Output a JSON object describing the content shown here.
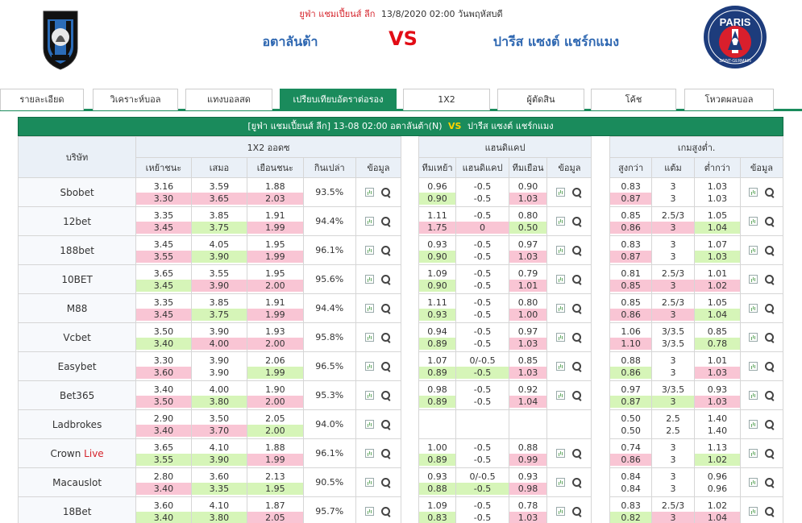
{
  "match": {
    "league": "ยูฟ่า แชมเปี้ยนส์ ลีก",
    "datetime": "13/8/2020 02:00 วันพฤหัสบดี",
    "home": "อตาลันต้า",
    "vs": "VS",
    "away": "ปารีส แซงต์ แชร์กแมง",
    "bar_league": "[ยูฟ่า แชมเปี้ยนส์ ลีก]",
    "bar_time": "13-08 02:00",
    "bar_home": "อตาลันต้า(N)",
    "bar_vs": "VS",
    "bar_away": "ปารีส แซงต์ แชร์กแมง"
  },
  "tabs": [
    "รายละเอียด",
    "วิเคราะห์บอล",
    "แทงบอลสด",
    "เปรียบเทียบอัตราต่อรอง",
    "1X2",
    "ผู้ตัดสิน",
    "โค้ช",
    "โหวตผลบอล"
  ],
  "active_tab": 3,
  "table": {
    "company_header": "บริษัท",
    "group1_title": "1X2 ออดซ",
    "group2_title": "แฮนดิแคป",
    "group3_title": "เกมสูงต่ำ.",
    "g1_cols": [
      "เหย้าชนะ",
      "เสมอ",
      "เยือนชนะ",
      "กินเปล่า",
      "ข้อมูล"
    ],
    "g2_cols": [
      "ทีมเหย้า",
      "แฮนดิแคป",
      "ทีมเยือน",
      "ข้อมูล"
    ],
    "g3_cols": [
      "สูงกว่า",
      "แต้ม",
      "ต่ำกว่า",
      "ข้อมูล"
    ]
  },
  "rows": [
    {
      "company": "Sbobet",
      "live": "",
      "x12": [
        [
          "3.16",
          "3.30",
          "r"
        ],
        [
          "3.59",
          "3.65",
          "r"
        ],
        [
          "1.88",
          "2.03",
          "r"
        ]
      ],
      "payout": "93.5%",
      "hdp": [
        [
          "0.96",
          "0.90",
          "g"
        ],
        [
          "-0.5",
          "-0.5",
          ""
        ],
        [
          "0.90",
          "1.03",
          "r"
        ]
      ],
      "ou": [
        [
          "0.83",
          "0.87",
          "r"
        ],
        [
          "3",
          "3",
          ""
        ],
        [
          "1.03",
          "1.03",
          ""
        ]
      ]
    },
    {
      "company": "12bet",
      "live": "",
      "x12": [
        [
          "3.35",
          "3.45",
          "r"
        ],
        [
          "3.85",
          "3.75",
          "g"
        ],
        [
          "1.91",
          "1.99",
          "r"
        ]
      ],
      "payout": "94.4%",
      "hdp": [
        [
          "1.11",
          "1.75",
          "r"
        ],
        [
          "-0.5",
          "0",
          "r"
        ],
        [
          "0.80",
          "0.50",
          "g"
        ]
      ],
      "ou": [
        [
          "0.85",
          "0.86",
          "r"
        ],
        [
          "2.5/3",
          "3",
          "r"
        ],
        [
          "1.05",
          "1.04",
          "g"
        ]
      ]
    },
    {
      "company": "188bet",
      "live": "",
      "x12": [
        [
          "3.45",
          "3.55",
          "r"
        ],
        [
          "4.05",
          "3.90",
          "g"
        ],
        [
          "1.95",
          "1.99",
          "r"
        ]
      ],
      "payout": "96.1%",
      "hdp": [
        [
          "0.93",
          "0.90",
          "g"
        ],
        [
          "-0.5",
          "-0.5",
          ""
        ],
        [
          "0.97",
          "1.03",
          "r"
        ]
      ],
      "ou": [
        [
          "0.83",
          "0.87",
          "r"
        ],
        [
          "3",
          "3",
          ""
        ],
        [
          "1.07",
          "1.03",
          "g"
        ]
      ]
    },
    {
      "company": "10BET",
      "live": "",
      "x12": [
        [
          "3.65",
          "3.45",
          "g"
        ],
        [
          "3.55",
          "3.90",
          "r"
        ],
        [
          "1.95",
          "2.00",
          "r"
        ]
      ],
      "payout": "95.6%",
      "hdp": [
        [
          "1.09",
          "0.90",
          "g"
        ],
        [
          "-0.5",
          "-0.5",
          ""
        ],
        [
          "0.79",
          "1.01",
          "r"
        ]
      ],
      "ou": [
        [
          "0.81",
          "0.85",
          "r"
        ],
        [
          "2.5/3",
          "3",
          "r"
        ],
        [
          "1.01",
          "1.02",
          "r"
        ]
      ]
    },
    {
      "company": "M88",
      "live": "",
      "x12": [
        [
          "3.35",
          "3.45",
          "r"
        ],
        [
          "3.85",
          "3.75",
          "g"
        ],
        [
          "1.91",
          "1.99",
          "r"
        ]
      ],
      "payout": "94.4%",
      "hdp": [
        [
          "1.11",
          "0.93",
          "g"
        ],
        [
          "-0.5",
          "-0.5",
          ""
        ],
        [
          "0.80",
          "1.00",
          "r"
        ]
      ],
      "ou": [
        [
          "0.85",
          "0.86",
          "r"
        ],
        [
          "2.5/3",
          "3",
          "r"
        ],
        [
          "1.05",
          "1.04",
          "g"
        ]
      ]
    },
    {
      "company": "Vcbet",
      "live": "",
      "x12": [
        [
          "3.50",
          "3.40",
          "g"
        ],
        [
          "3.90",
          "4.00",
          "r"
        ],
        [
          "1.93",
          "2.00",
          "r"
        ]
      ],
      "payout": "95.8%",
      "hdp": [
        [
          "0.94",
          "0.89",
          "g"
        ],
        [
          "-0.5",
          "-0.5",
          ""
        ],
        [
          "0.97",
          "1.03",
          "r"
        ]
      ],
      "ou": [
        [
          "1.06",
          "1.10",
          "r"
        ],
        [
          "3/3.5",
          "3/3.5",
          ""
        ],
        [
          "0.85",
          "0.78",
          "g"
        ]
      ]
    },
    {
      "company": "Easybet",
      "live": "",
      "x12": [
        [
          "3.30",
          "3.60",
          "r"
        ],
        [
          "3.90",
          "3.90",
          ""
        ],
        [
          "2.06",
          "1.99",
          "g"
        ]
      ],
      "payout": "96.5%",
      "hdp": [
        [
          "1.07",
          "0.89",
          "g"
        ],
        [
          "0/-0.5",
          "-0.5",
          "g"
        ],
        [
          "0.85",
          "1.03",
          "r"
        ]
      ],
      "ou": [
        [
          "0.88",
          "0.86",
          "g"
        ],
        [
          "3",
          "3",
          ""
        ],
        [
          "1.01",
          "1.03",
          "r"
        ]
      ]
    },
    {
      "company": "Bet365",
      "live": "",
      "x12": [
        [
          "3.40",
          "3.50",
          "r"
        ],
        [
          "4.00",
          "3.80",
          "g"
        ],
        [
          "1.90",
          "2.00",
          "r"
        ]
      ],
      "payout": "95.3%",
      "hdp": [
        [
          "0.98",
          "0.89",
          "g"
        ],
        [
          "-0.5",
          "-0.5",
          ""
        ],
        [
          "0.92",
          "1.04",
          "r"
        ]
      ],
      "ou": [
        [
          "0.97",
          "0.87",
          "g"
        ],
        [
          "3/3.5",
          "3",
          "g"
        ],
        [
          "0.93",
          "1.03",
          "r"
        ]
      ]
    },
    {
      "company": "Ladbrokes",
      "live": "",
      "x12": [
        [
          "2.90",
          "3.40",
          "r"
        ],
        [
          "3.50",
          "3.70",
          "r"
        ],
        [
          "2.05",
          "2.00",
          "g"
        ]
      ],
      "payout": "94.0%",
      "hdp": null,
      "ou": [
        [
          "0.50",
          "0.50",
          ""
        ],
        [
          "2.5",
          "2.5",
          ""
        ],
        [
          "1.40",
          "1.40",
          ""
        ]
      ]
    },
    {
      "company": "Crown",
      "live": "Live",
      "x12": [
        [
          "3.65",
          "3.55",
          "g"
        ],
        [
          "4.10",
          "3.90",
          "g"
        ],
        [
          "1.88",
          "1.99",
          "r"
        ]
      ],
      "payout": "96.1%",
      "hdp": [
        [
          "1.00",
          "0.89",
          "g"
        ],
        [
          "-0.5",
          "-0.5",
          ""
        ],
        [
          "0.88",
          "0.99",
          "r"
        ]
      ],
      "ou": [
        [
          "0.74",
          "0.86",
          "r"
        ],
        [
          "3",
          "3",
          ""
        ],
        [
          "1.13",
          "1.02",
          "g"
        ]
      ]
    },
    {
      "company": "Macauslot",
      "live": "",
      "x12": [
        [
          "2.80",
          "3.40",
          "r"
        ],
        [
          "3.60",
          "3.35",
          "g"
        ],
        [
          "2.13",
          "1.95",
          "g"
        ]
      ],
      "payout": "90.5%",
      "hdp": [
        [
          "0.93",
          "0.88",
          "g"
        ],
        [
          "0/-0.5",
          "-0.5",
          "g"
        ],
        [
          "0.93",
          "0.98",
          "r"
        ]
      ],
      "ou": [
        [
          "0.84",
          "0.84",
          ""
        ],
        [
          "3",
          "3",
          ""
        ],
        [
          "0.96",
          "0.96",
          ""
        ]
      ]
    },
    {
      "company": "18Bet",
      "live": "",
      "x12": [
        [
          "3.60",
          "3.40",
          "g"
        ],
        [
          "4.10",
          "3.80",
          "g"
        ],
        [
          "1.87",
          "2.05",
          "r"
        ]
      ],
      "payout": "95.7%",
      "hdp": [
        [
          "1.09",
          "0.83",
          "g"
        ],
        [
          "-0.5",
          "-0.5",
          ""
        ],
        [
          "0.78",
          "1.03",
          "r"
        ]
      ],
      "ou": [
        [
          "0.83",
          "0.82",
          "g"
        ],
        [
          "2.5/3",
          "3",
          "r"
        ],
        [
          "1.02",
          "1.04",
          "r"
        ]
      ]
    }
  ],
  "colors": {
    "brand_green": "#1a8b5c",
    "team_blue": "#2e67b1",
    "vs_red": "#e20c15",
    "up_pink": "#f9c5d4",
    "down_green": "#d6f5b8"
  },
  "icons": {
    "home_logo": "atalanta-crest-icon",
    "away_logo": "psg-crest-icon",
    "detail_chart": "bar-chart-icon",
    "detail_search": "search-icon"
  },
  "logo_text": {
    "home_top": "ATALANTA",
    "home_year": "1907",
    "away_top": "PARIS",
    "away_bottom": "SAINT-GERMAIN"
  }
}
